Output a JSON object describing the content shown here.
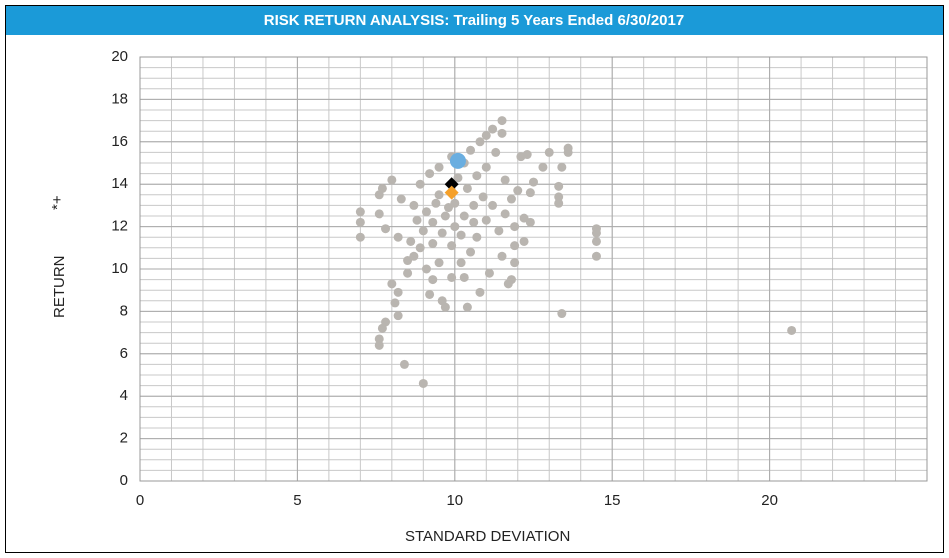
{
  "chart_data": {
    "type": "scatter",
    "title": "RISK RETURN ANALYSIS: Trailing 5 Years Ended 6/30/2017",
    "x_label": "STANDARD DEVIATION",
    "y_label": "RETURN",
    "y_label_note": "*+",
    "xlim": [
      0,
      25
    ],
    "ylim": [
      0,
      20
    ],
    "xticks": [
      0,
      5,
      10,
      15,
      20
    ],
    "yticks": [
      0,
      2,
      4,
      6,
      8,
      10,
      12,
      14,
      16,
      18,
      20
    ],
    "grid": true,
    "minor_grid": {
      "x": 1,
      "y": 0.5
    },
    "series": [
      {
        "color": "#b9b5b0",
        "marker": "circle",
        "x": [
          20.7,
          13.4,
          9.0,
          8.4,
          7.6,
          7.6,
          7.7,
          7.8,
          8.1,
          8.2,
          8.2,
          8.0,
          7.0,
          7.0,
          7.0,
          14.5,
          14.5,
          14.5,
          14.5,
          13.3,
          13.3,
          13.3,
          13.4,
          13.6,
          13.6,
          13.0,
          12.8,
          12.4,
          12.4,
          12.2,
          11.9,
          11.8,
          11.7,
          11.5,
          11.1,
          10.8,
          10.4,
          9.7,
          9.6,
          9.2,
          9.3,
          9.1,
          8.5,
          8.5,
          8.7,
          8.6,
          8.2,
          7.8,
          7.6,
          7.6,
          7.7,
          8.0,
          8.3,
          8.7,
          8.9,
          9.2,
          9.5,
          9.9,
          10.3,
          10.5,
          10.8,
          11.0,
          11.2,
          11.5,
          11.5,
          11.3,
          11.0,
          11.6,
          11.8,
          12.0,
          12.1,
          12.3,
          11.6,
          11.9,
          11.4,
          11.0,
          10.7,
          10.5,
          10.2,
          9.9,
          9.5,
          9.3,
          9.0,
          8.8,
          9.1,
          9.4,
          9.7,
          10.0,
          10.3,
          10.6,
          10.9,
          10.4,
          10.0,
          9.6,
          9.9,
          10.2,
          10.6,
          11.2,
          9.3,
          9.8,
          10.1,
          10.7,
          8.9,
          9.5,
          10.3,
          12.5,
          11.9,
          12.2
        ],
        "values": [
          7.1,
          7.9,
          4.6,
          5.5,
          6.4,
          6.7,
          7.2,
          7.5,
          8.4,
          7.8,
          8.9,
          9.3,
          12.7,
          12.2,
          11.5,
          10.6,
          11.3,
          11.7,
          11.9,
          13.1,
          13.4,
          13.9,
          14.8,
          15.5,
          15.7,
          15.5,
          14.8,
          13.6,
          12.2,
          11.3,
          10.3,
          9.5,
          9.3,
          10.6,
          9.8,
          8.9,
          8.2,
          8.2,
          8.5,
          8.8,
          9.5,
          10.0,
          9.8,
          10.4,
          10.6,
          11.3,
          11.5,
          11.9,
          12.6,
          13.5,
          13.8,
          14.2,
          13.3,
          13.0,
          14.0,
          14.5,
          14.8,
          15.3,
          15.0,
          15.6,
          16.0,
          16.3,
          16.6,
          17.0,
          16.4,
          15.5,
          14.8,
          14.2,
          13.3,
          13.7,
          15.3,
          15.4,
          12.6,
          12.0,
          11.8,
          12.3,
          11.5,
          10.8,
          10.3,
          9.6,
          10.3,
          11.2,
          11.8,
          12.3,
          12.7,
          13.1,
          12.5,
          12.0,
          12.5,
          13.0,
          13.4,
          13.8,
          13.1,
          11.7,
          11.1,
          11.6,
          12.2,
          13.0,
          12.2,
          12.9,
          14.3,
          14.4,
          11.0,
          13.5,
          9.6,
          14.1,
          11.1,
          12.4
        ]
      },
      {
        "color": "#6aaee0",
        "marker": "circle",
        "x": [
          10.1
        ],
        "values": [
          15.1
        ]
      },
      {
        "color": "#000000",
        "marker": "diamond",
        "x": [
          9.9
        ],
        "values": [
          14.0
        ]
      },
      {
        "color": "#f5a02a",
        "marker": "diamond",
        "x": [
          9.9
        ],
        "values": [
          13.6
        ]
      }
    ]
  }
}
